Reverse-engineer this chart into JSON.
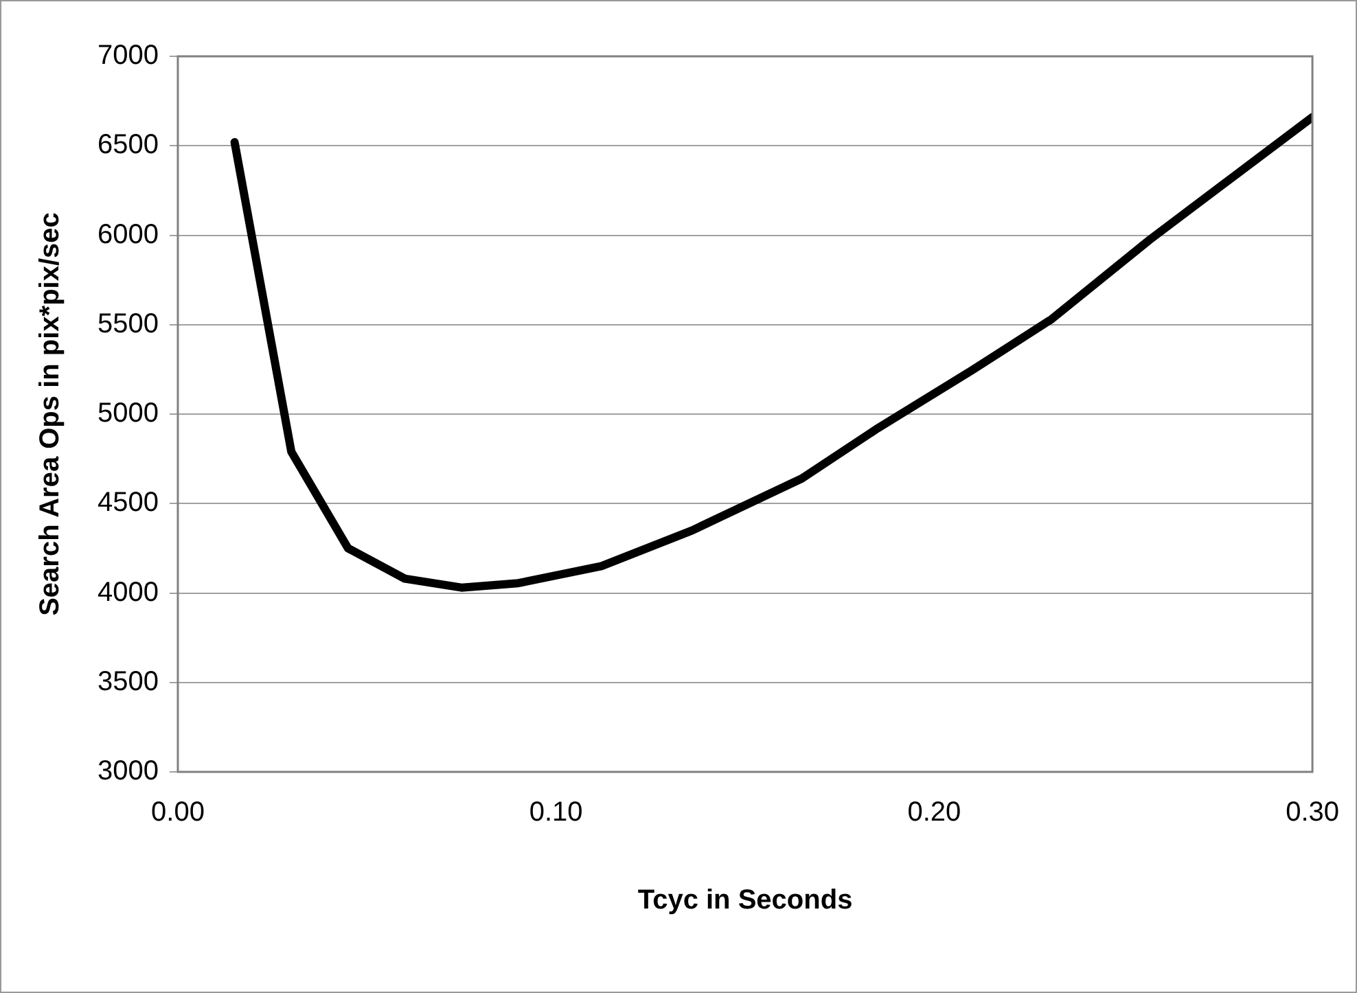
{
  "chart_data": {
    "type": "line",
    "xlabel": "Tcyc in Seconds",
    "ylabel": "Search Area Ops in pix*pix/sec",
    "x": [
      0.015,
      0.03,
      0.045,
      0.06,
      0.075,
      0.09,
      0.112,
      0.136,
      0.165,
      0.185,
      0.21,
      0.231,
      0.257,
      0.3
    ],
    "series": [
      {
        "color": "#000000",
        "values": [
          6520,
          4790,
          4250,
          4080,
          4030,
          4055,
          4150,
          4350,
          4640,
          4920,
          5245,
          5530,
          5975,
          6660
        ]
      }
    ],
    "xlim": [
      0,
      0.3
    ],
    "xticks": [
      {
        "value": 0,
        "label": "0.00"
      },
      {
        "value": 0.1,
        "label": "0.10"
      },
      {
        "value": 0.2,
        "label": "0.20"
      },
      {
        "value": 0.3,
        "label": "0.30"
      }
    ],
    "ylim": [
      3000,
      7000
    ],
    "yticks": [
      3000,
      3500,
      4000,
      4500,
      5000,
      5500,
      6000,
      6500,
      7000
    ],
    "grid": "y",
    "legend": false,
    "marker": "none",
    "line_style": "solid"
  }
}
